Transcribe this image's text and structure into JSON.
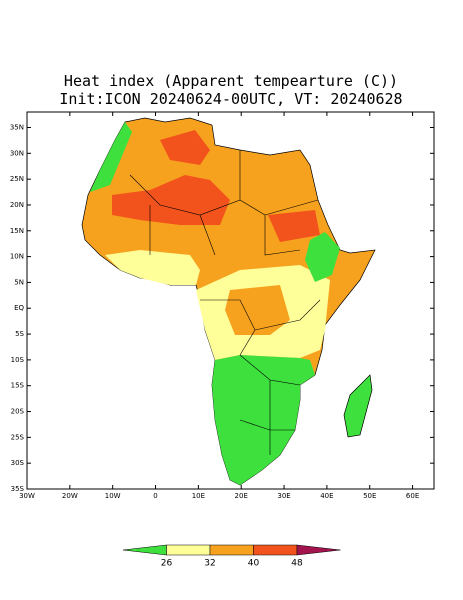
{
  "map": {
    "title": "Heat index (Apparent tempearture (C))",
    "subtitle": "Init:ICON 20240624-00UTC, VT: 20240628",
    "xlim": [
      -30,
      65
    ],
    "ylim": [
      -35,
      38
    ],
    "xticks": [
      {
        "value": -30,
        "label": "30W"
      },
      {
        "value": -20,
        "label": "20W"
      },
      {
        "value": -10,
        "label": "10W"
      },
      0,
      {
        "value": 10,
        "label": "10E"
      },
      {
        "value": 20,
        "label": "20E"
      },
      {
        "value": 30,
        "label": "30E"
      },
      {
        "value": 40,
        "label": "40E"
      },
      {
        "value": 50,
        "label": "50E"
      },
      {
        "value": 60,
        "label": "60E"
      }
    ],
    "yticks": [
      {
        "value": 35,
        "label": "35N"
      },
      {
        "value": 30,
        "label": "30N"
      },
      {
        "value": 25,
        "label": "25N"
      },
      {
        "value": 20,
        "label": "20N"
      },
      {
        "value": 15,
        "label": "15N"
      },
      {
        "value": 10,
        "label": "10N"
      },
      {
        "value": 5,
        "label": "5N"
      },
      {
        "value": 0,
        "label": "EQ"
      },
      {
        "value": -5,
        "label": "5S"
      },
      {
        "value": -10,
        "label": "10S"
      },
      {
        "value": -15,
        "label": "15S"
      },
      {
        "value": -20,
        "label": "20S"
      },
      {
        "value": -25,
        "label": "25S"
      },
      {
        "value": -30,
        "label": "30S"
      },
      {
        "value": -35,
        "label": "35S"
      }
    ],
    "colorbar": {
      "levels": [
        26,
        32,
        40,
        48
      ],
      "colors": [
        "#3ee03e",
        "#ffff99",
        "#f6a21e",
        "#f2531c",
        "#a3144e"
      ]
    }
  }
}
